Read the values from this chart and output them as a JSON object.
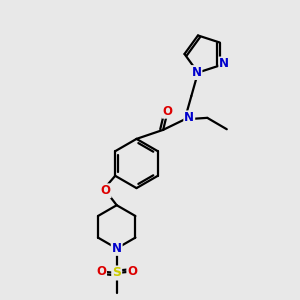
{
  "bg_color": "#e8e8e8",
  "bond_color": "#000000",
  "bond_width": 1.6,
  "atom_colors": {
    "N": "#0000cc",
    "O": "#dd0000",
    "S": "#cccc00",
    "C": "#000000"
  },
  "figsize": [
    3.0,
    3.0
  ],
  "dpi": 100
}
